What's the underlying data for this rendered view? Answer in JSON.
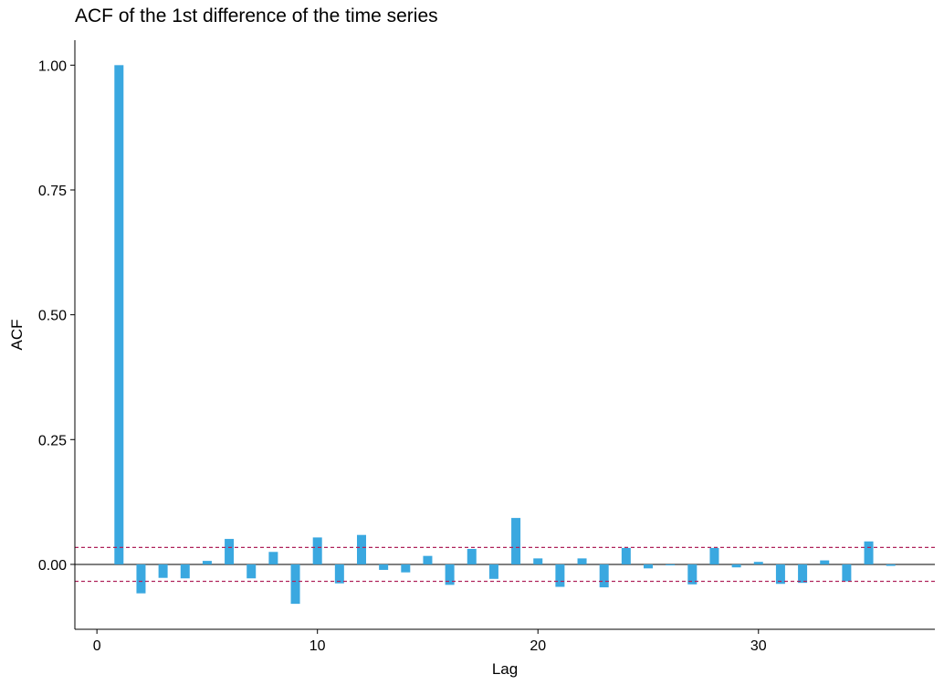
{
  "chart_data": {
    "type": "bar",
    "title": "ACF of the 1st difference of the time series",
    "xlabel": "Lag",
    "ylabel": "ACF",
    "xlim": [
      -1,
      38
    ],
    "ylim": [
      -0.13,
      1.05
    ],
    "x_ticks": [
      0,
      10,
      20,
      30
    ],
    "x_tick_labels": [
      "0",
      "10",
      "20",
      "30"
    ],
    "y_ticks": [
      0.0,
      0.25,
      0.5,
      0.75,
      1.0
    ],
    "y_tick_labels": [
      "0.00",
      "0.25",
      "0.50",
      "0.75",
      "1.00"
    ],
    "x": [
      1,
      2,
      3,
      4,
      5,
      6,
      7,
      8,
      9,
      10,
      11,
      12,
      13,
      14,
      15,
      16,
      17,
      18,
      19,
      20,
      21,
      22,
      23,
      24,
      25,
      26,
      27,
      28,
      29,
      30,
      31,
      32,
      33,
      34,
      35,
      36
    ],
    "values": [
      1.0,
      -0.058,
      -0.027,
      -0.028,
      0.007,
      0.051,
      -0.028,
      0.025,
      -0.079,
      0.054,
      -0.038,
      0.059,
      -0.011,
      -0.016,
      0.017,
      -0.041,
      0.031,
      -0.029,
      0.093,
      0.012,
      -0.045,
      0.012,
      -0.046,
      0.033,
      -0.008,
      -0.002,
      -0.04,
      0.033,
      -0.006,
      0.005,
      -0.039,
      -0.037,
      0.008,
      -0.034,
      0.046,
      -0.003
    ],
    "confidence_band": [
      -0.034,
      0.034
    ],
    "bar_color": "#3aa8e0",
    "band_color": "#b0245b",
    "grid": false
  }
}
